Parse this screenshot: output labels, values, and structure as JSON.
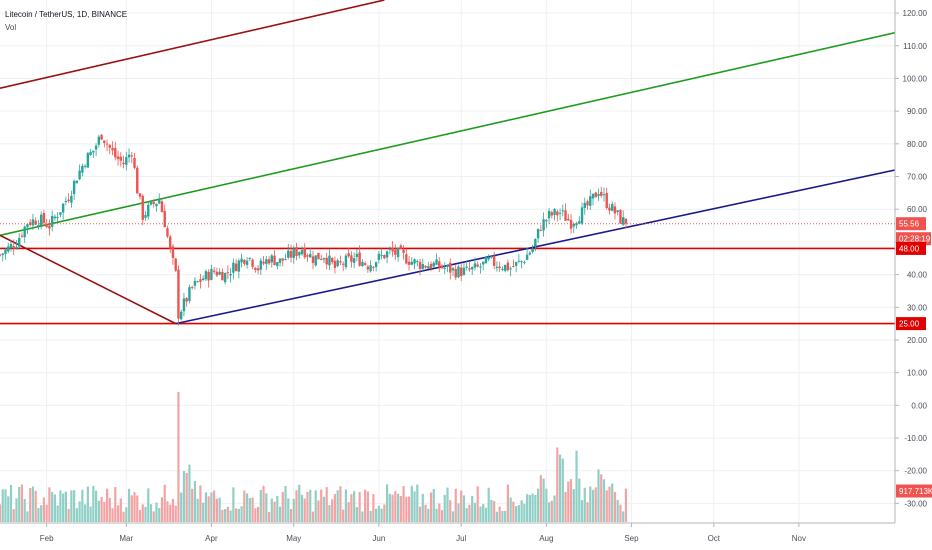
{
  "header": {
    "title": "Litecoin / TetherUS, 1D, BINANCE",
    "volume_label": "Vol"
  },
  "price_tags": {
    "last_price": "55.56",
    "countdown": "02:28:19",
    "upper_level": "48.00",
    "lower_level": "25.00",
    "volume": "917.713K"
  },
  "colors": {
    "up": "#26a69a",
    "down": "#ef5350",
    "volume_up": "#8fcfc5",
    "volume_down": "#f3a3a3",
    "horizontal_level": "#e00000",
    "channel_green": "#1e9c1e",
    "channel_blue": "#1a1a8c",
    "channel_darkred": "#9b1010",
    "price_line": "#ef5350"
  },
  "chart_data": {
    "type": "candlestick",
    "title": "Litecoin / TetherUS, 1D, BINANCE",
    "x_axis_labels": [
      "Feb",
      "Mar",
      "Apr",
      "May",
      "Jun",
      "Jul",
      "Aug",
      "Sep",
      "Oct",
      "Nov"
    ],
    "price_axis_ticks": [
      "120.00",
      "110.00",
      "100.00",
      "90.00",
      "80.00",
      "70.00",
      "60.00",
      "50.00",
      "40.00",
      "30.00",
      "20.00",
      "10.00",
      "0.00",
      "-10.00",
      "-20.00",
      "-30.00"
    ],
    "ylim": [
      -36,
      124
    ],
    "x_range_days": [
      0,
      326
    ],
    "last_price": 55.56,
    "horizontal_levels": [
      48,
      25
    ],
    "trend_lines": [
      {
        "name": "green",
        "points": [
          [
            0,
            52
          ],
          [
            326,
            114
          ]
        ]
      },
      {
        "name": "blue",
        "points": [
          [
            64,
            25
          ],
          [
            326,
            72
          ]
        ]
      },
      {
        "name": "darkred-upper",
        "points": [
          [
            0,
            97
          ],
          [
            140,
            124
          ]
        ]
      },
      {
        "name": "darkred-lower",
        "points": [
          [
            0,
            52
          ],
          [
            64,
            25
          ]
        ]
      }
    ],
    "price_path": [
      [
        0,
        46
      ],
      [
        3,
        48
      ],
      [
        6,
        50
      ],
      [
        10,
        56
      ],
      [
        14,
        57
      ],
      [
        18,
        55
      ],
      [
        22,
        60
      ],
      [
        25,
        64
      ],
      [
        28,
        70
      ],
      [
        31,
        75
      ],
      [
        34,
        78
      ],
      [
        37,
        83
      ],
      [
        39,
        80
      ],
      [
        42,
        76
      ],
      [
        45,
        74
      ],
      [
        48,
        78
      ],
      [
        50,
        66
      ],
      [
        52,
        58
      ],
      [
        55,
        61
      ],
      [
        58,
        63
      ],
      [
        60,
        56
      ],
      [
        62,
        47
      ],
      [
        64,
        40
      ],
      [
        65,
        28
      ],
      [
        67,
        31
      ],
      [
        70,
        36
      ],
      [
        74,
        39
      ],
      [
        78,
        41
      ],
      [
        82,
        40
      ],
      [
        86,
        43
      ],
      [
        90,
        46
      ],
      [
        94,
        42
      ],
      [
        98,
        45
      ],
      [
        102,
        44
      ],
      [
        106,
        46
      ],
      [
        110,
        48
      ],
      [
        114,
        45
      ],
      [
        118,
        46
      ],
      [
        122,
        42
      ],
      [
        126,
        44
      ],
      [
        130,
        45
      ],
      [
        134,
        43
      ],
      [
        138,
        45
      ],
      [
        142,
        47
      ],
      [
        146,
        46
      ],
      [
        150,
        44
      ],
      [
        154,
        43
      ],
      [
        158,
        43
      ],
      [
        162,
        42
      ],
      [
        166,
        41
      ],
      [
        170,
        41
      ],
      [
        174,
        42
      ],
      [
        178,
        44
      ],
      [
        182,
        43
      ],
      [
        186,
        42
      ],
      [
        190,
        44
      ],
      [
        194,
        48
      ],
      [
        197,
        55
      ],
      [
        200,
        58
      ],
      [
        204,
        59
      ],
      [
        208,
        56
      ],
      [
        212,
        59
      ],
      [
        215,
        62
      ],
      [
        218,
        66
      ],
      [
        221,
        62
      ],
      [
        224,
        59
      ],
      [
        226,
        57
      ],
      [
        228,
        55.56
      ]
    ],
    "volume_range": [
      0,
      1
    ],
    "volume_spike_day": 65
  }
}
